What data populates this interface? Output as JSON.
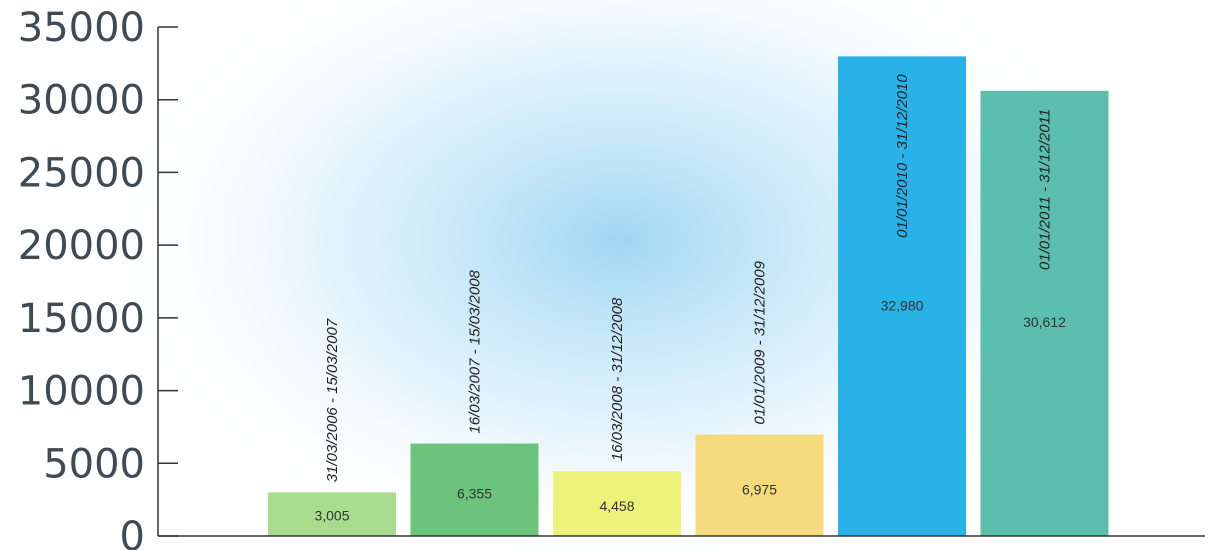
{
  "chart_data": {
    "type": "bar",
    "title": "",
    "xlabel": "",
    "ylabel": "",
    "ylim": [
      0,
      35000
    ],
    "yticks": [
      "0",
      "5000",
      "10000",
      "15000",
      "20000",
      "25000",
      "30000",
      "35000"
    ],
    "categories": [
      "31/03/2006 - 15/03/2007",
      "16/03/2007 - 15/03/2008",
      "16/03/2008 - 31/12/2008",
      "01/01/2009 - 31/12/2009",
      "01/01/2010 - 31/12/2010",
      "01/01/2011 - 31/12/2011"
    ],
    "values": [
      3005,
      6355,
      4458,
      6975,
      32980,
      30612
    ],
    "value_labels": [
      "3,005",
      "6,355",
      "4,458",
      "6,975",
      "32,980",
      "30,612"
    ],
    "bar_colors": [
      "#a9dc8e",
      "#6cc47c",
      "#edf27a",
      "#f6da7e",
      "#29b2e8",
      "#5cbfad"
    ],
    "grid": false,
    "legend": "none"
  }
}
